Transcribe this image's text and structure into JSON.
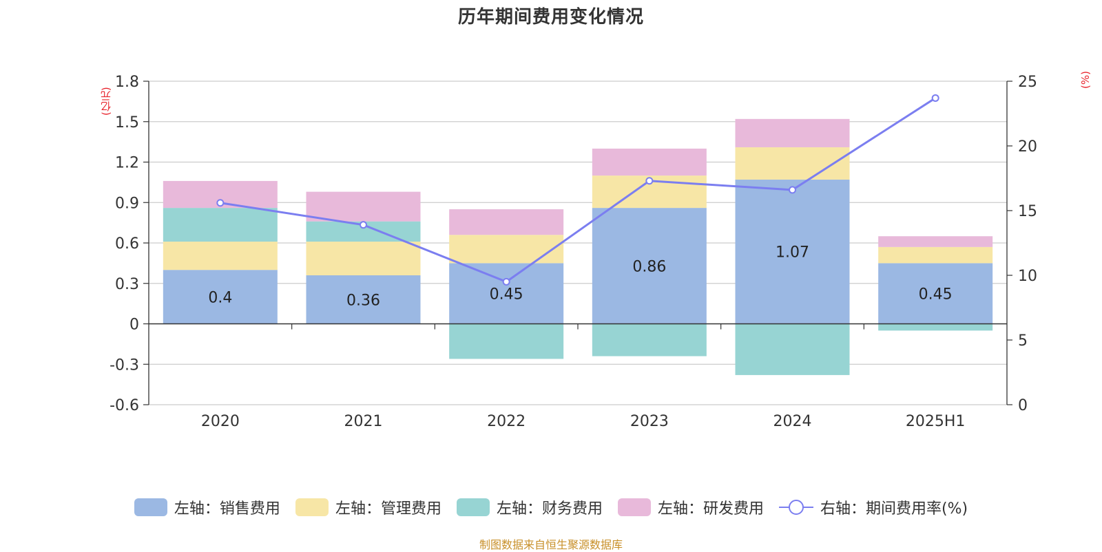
{
  "chart_data": {
    "type": "bar",
    "title": "历年期间费用变化情况",
    "categories": [
      "2020",
      "2021",
      "2022",
      "2023",
      "2024",
      "2025H1"
    ],
    "left_axis": {
      "unit_label": "(亿元)",
      "ylim": [
        -0.6,
        1.8
      ],
      "ticks": [
        "1.8",
        "1.5",
        "1.2",
        "0.9",
        "0.6",
        "0.3",
        "0",
        "-0.3",
        "-0.6"
      ],
      "tick_values": [
        1.8,
        1.5,
        1.2,
        0.9,
        0.6,
        0.3,
        0,
        -0.3,
        -0.6
      ]
    },
    "right_axis": {
      "unit_label": "(%)",
      "ylim": [
        0,
        25
      ],
      "ticks": [
        "25",
        "20",
        "15",
        "10",
        "5",
        "0"
      ],
      "tick_values": [
        25,
        20,
        15,
        10,
        5,
        0
      ]
    },
    "grid": true,
    "legend_position": "bottom",
    "series": [
      {
        "name": "左轴：销售费用",
        "type": "bar",
        "axis": "left",
        "color": "#9bb8e3",
        "values": [
          0.4,
          0.36,
          0.45,
          0.86,
          1.07,
          0.45
        ],
        "data_labels": [
          "0.4",
          "0.36",
          "0.45",
          "0.86",
          "1.07",
          "0.45"
        ]
      },
      {
        "name": "左轴：管理费用",
        "type": "bar",
        "axis": "left",
        "color": "#f7e6a6",
        "values": [
          0.21,
          0.25,
          0.21,
          0.24,
          0.24,
          0.12
        ]
      },
      {
        "name": "左轴：财务费用",
        "type": "bar",
        "axis": "left",
        "color": "#97d4d3",
        "values": [
          0.25,
          0.15,
          -0.26,
          -0.24,
          -0.38,
          -0.05
        ]
      },
      {
        "name": "左轴：研发费用",
        "type": "bar",
        "axis": "left",
        "color": "#e8b9da",
        "values": [
          0.2,
          0.22,
          0.19,
          0.2,
          0.21,
          0.08
        ]
      },
      {
        "name": "右轴：期间费用率(%)",
        "type": "line",
        "axis": "right",
        "color": "#7b7ef0",
        "values": [
          15.6,
          13.9,
          9.5,
          17.3,
          16.6,
          23.7
        ]
      }
    ]
  },
  "source_note": "制图数据来自恒生聚源数据库"
}
